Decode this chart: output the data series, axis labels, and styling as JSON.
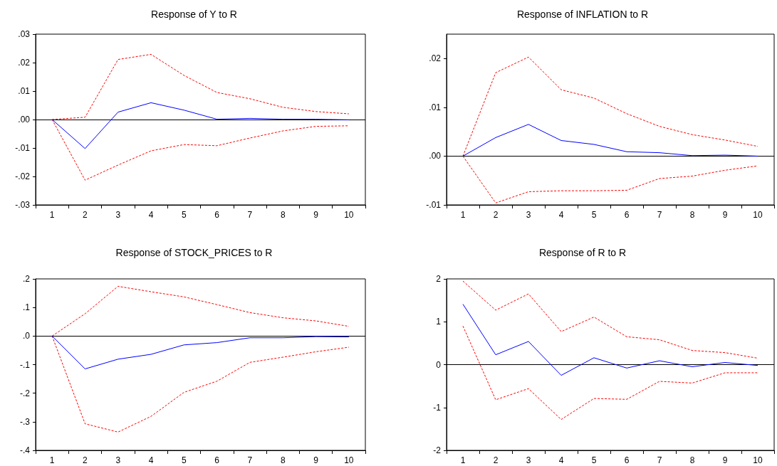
{
  "chart_data": [
    {
      "type": "line",
      "title": "Response of Y to R",
      "categories": [
        "1",
        "2",
        "3",
        "4",
        "5",
        "6",
        "7",
        "8",
        "9",
        "10"
      ],
      "marker": "none",
      "ylim": [
        -0.03,
        0.03
      ],
      "yticks": [
        {
          "value": -0.03,
          "label": "-.03"
        },
        {
          "value": -0.02,
          "label": "-.02"
        },
        {
          "value": -0.01,
          "label": "-.01"
        },
        {
          "value": 0,
          "label": ".00"
        },
        {
          "value": 0.01,
          "label": ".01"
        },
        {
          "value": 0.02,
          "label": ".02"
        },
        {
          "value": 0.03,
          "label": ".03"
        }
      ],
      "ref_lines": [
        {
          "axis": "y",
          "value": 0,
          "color": "#000000"
        }
      ],
      "series": [
        {
          "color": "#0000ff",
          "line_style": "solid",
          "values": [
            0,
            -0.0102,
            0.0026,
            0.0059,
            0.0033,
            0.0001,
            0.0004,
            0.0001,
            0.0001,
            -0.0001
          ]
        },
        {
          "color": "#ff0000",
          "line_style": "dashed",
          "values": [
            0,
            0.0008,
            0.0211,
            0.0229,
            0.0155,
            0.0095,
            0.0073,
            0.0043,
            0.0028,
            0.002
          ]
        },
        {
          "color": "#ff0000",
          "line_style": "dashed",
          "values": [
            0,
            -0.0213,
            -0.016,
            -0.011,
            -0.0088,
            -0.0092,
            -0.0065,
            -0.004,
            -0.0024,
            -0.0022
          ]
        }
      ]
    },
    {
      "type": "line",
      "title": "Response of INFLATION to R",
      "categories": [
        "1",
        "2",
        "3",
        "4",
        "5",
        "6",
        "7",
        "8",
        "9",
        "10"
      ],
      "marker": "none",
      "ylim": [
        -0.01,
        0.025
      ],
      "yticks": [
        {
          "value": -0.01,
          "label": "-.01"
        },
        {
          "value": 0,
          "label": ".00"
        },
        {
          "value": 0.01,
          "label": ".01"
        },
        {
          "value": 0.02,
          "label": ".02"
        }
      ],
      "ref_lines": [
        {
          "axis": "y",
          "value": 0,
          "color": "#000000"
        }
      ],
      "series": [
        {
          "color": "#0000ff",
          "line_style": "solid",
          "values": [
            0,
            0.0038,
            0.0065,
            0.0032,
            0.0024,
            0.0009,
            0.0007,
            0.0001,
            0.0002,
            0
          ]
        },
        {
          "color": "#ff0000",
          "line_style": "dashed",
          "values": [
            0,
            0.0171,
            0.0203,
            0.0136,
            0.0119,
            0.0087,
            0.0061,
            0.0044,
            0.0033,
            0.002
          ]
        },
        {
          "color": "#ff0000",
          "line_style": "dashed",
          "values": [
            0,
            -0.0096,
            -0.0073,
            -0.0071,
            -0.0071,
            -0.007,
            -0.0046,
            -0.0041,
            -0.0029,
            -0.002
          ]
        }
      ]
    },
    {
      "type": "line",
      "title": "Response of STOCK_PRICES to R",
      "categories": [
        "1",
        "2",
        "3",
        "4",
        "5",
        "6",
        "7",
        "8",
        "9",
        "10"
      ],
      "marker": "none",
      "ylim": [
        -0.4,
        0.2
      ],
      "yticks": [
        {
          "value": -0.4,
          "label": "-.4"
        },
        {
          "value": -0.3,
          "label": "-.3"
        },
        {
          "value": -0.2,
          "label": "-.2"
        },
        {
          "value": -0.1,
          "label": "-.1"
        },
        {
          "value": 0,
          "label": ".0"
        },
        {
          "value": 0.1,
          "label": ".1"
        },
        {
          "value": 0.2,
          "label": ".2"
        }
      ],
      "ref_lines": [
        {
          "axis": "y",
          "value": 0,
          "color": "#000000"
        }
      ],
      "series": [
        {
          "color": "#0000ff",
          "line_style": "solid",
          "values": [
            0,
            -0.115,
            -0.081,
            -0.064,
            -0.031,
            -0.023,
            -0.006,
            -0.006,
            -0.002,
            -0.003
          ]
        },
        {
          "color": "#ff0000",
          "line_style": "dashed",
          "values": [
            0,
            0.078,
            0.174,
            0.155,
            0.137,
            0.11,
            0.082,
            0.064,
            0.053,
            0.034
          ]
        },
        {
          "color": "#ff0000",
          "line_style": "dashed",
          "values": [
            0,
            -0.307,
            -0.336,
            -0.281,
            -0.197,
            -0.158,
            -0.092,
            -0.074,
            -0.055,
            -0.039
          ]
        }
      ]
    },
    {
      "type": "line",
      "title": "Response of R to R",
      "categories": [
        "1",
        "2",
        "3",
        "4",
        "5",
        "6",
        "7",
        "8",
        "9",
        "10"
      ],
      "marker": "none",
      "ylim": [
        -2,
        2
      ],
      "yticks": [
        -2,
        -1,
        0,
        1,
        2
      ],
      "ref_lines": [
        {
          "axis": "y",
          "value": 0,
          "color": "#000000"
        }
      ],
      "series": [
        {
          "color": "#0000ff",
          "line_style": "solid",
          "values": [
            1.41,
            0.23,
            0.54,
            -0.25,
            0.16,
            -0.08,
            0.09,
            -0.05,
            0.05,
            -0.02
          ]
        },
        {
          "color": "#ff0000",
          "line_style": "dashed",
          "values": [
            1.95,
            1.27,
            1.65,
            0.77,
            1.11,
            0.65,
            0.58,
            0.33,
            0.28,
            0.15
          ]
        },
        {
          "color": "#ff0000",
          "line_style": "dashed",
          "values": [
            0.9,
            -0.82,
            -0.56,
            -1.28,
            -0.79,
            -0.81,
            -0.39,
            -0.43,
            -0.19,
            -0.19
          ]
        }
      ]
    }
  ]
}
